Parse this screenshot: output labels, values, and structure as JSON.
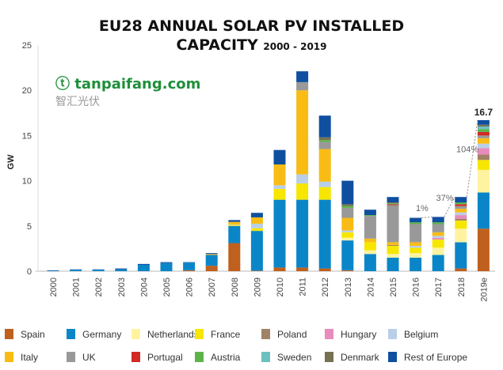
{
  "chart_data": {
    "type": "bar",
    "stacked": true,
    "title": "EU28 ANNUAL SOLAR PV INSTALLED",
    "title_line2": "CAPACITY",
    "title_years": "2000 - 2019",
    "ylabel": "GW",
    "xlabel": "",
    "ylim": [
      0,
      25
    ],
    "yticks": [
      "0",
      "5",
      "10",
      "15",
      "20",
      "25"
    ],
    "grid": false,
    "legend_position": "bottom",
    "categories": [
      "2000",
      "2001",
      "2002",
      "2003",
      "2004",
      "2005",
      "2006",
      "2007",
      "2008",
      "2009",
      "2010",
      "2011",
      "2012",
      "2013",
      "2014",
      "2015",
      "2016",
      "2017",
      "2018",
      "2019e"
    ],
    "series": [
      {
        "name": "Spain",
        "color": "#c0601e",
        "values": [
          0,
          0,
          0,
          0,
          0,
          0,
          0.1,
          0.6,
          3.1,
          0.05,
          0.4,
          0.4,
          0.3,
          0.1,
          0,
          0,
          0,
          0,
          0.3,
          4.7
        ]
      },
      {
        "name": "Germany",
        "color": "#0a86c8",
        "values": [
          0.05,
          0.15,
          0.15,
          0.2,
          0.7,
          0.9,
          0.85,
          1.2,
          1.9,
          4.4,
          7.5,
          7.5,
          7.6,
          3.3,
          1.9,
          1.5,
          1.5,
          1.8,
          2.9,
          4.0
        ]
      },
      {
        "name": "Netherlands",
        "color": "#fff3a0",
        "values": [
          0,
          0,
          0,
          0,
          0,
          0,
          0,
          0,
          0,
          0,
          0,
          0,
          0,
          0.3,
          0.4,
          0.4,
          0.5,
          0.8,
          1.5,
          2.5
        ]
      },
      {
        "name": "France",
        "color": "#f7e600",
        "values": [
          0,
          0,
          0,
          0,
          0,
          0,
          0,
          0,
          0.1,
          0.3,
          1.2,
          1.8,
          1.4,
          0.6,
          0.9,
          0.9,
          0.6,
          0.9,
          0.9,
          1.1
        ]
      },
      {
        "name": "Poland",
        "color": "#a08366",
        "values": [
          0,
          0,
          0,
          0,
          0,
          0,
          0,
          0,
          0,
          0,
          0,
          0,
          0,
          0,
          0,
          0.1,
          0,
          0,
          0.2,
          0.6
        ]
      },
      {
        "name": "Hungary",
        "color": "#e98bbd",
        "values": [
          0,
          0,
          0,
          0,
          0,
          0,
          0,
          0,
          0,
          0,
          0,
          0,
          0,
          0,
          0,
          0,
          0,
          0.2,
          0.4,
          0.7
        ]
      },
      {
        "name": "Belgium",
        "color": "#b9cfe8",
        "values": [
          0,
          0,
          0,
          0,
          0,
          0,
          0,
          0,
          0.05,
          0.5,
          0.4,
          1.0,
          0.6,
          0.2,
          0,
          0,
          0.2,
          0.2,
          0.3,
          0.5
        ]
      },
      {
        "name": "Italy",
        "color": "#f9bc15",
        "values": [
          0,
          0,
          0,
          0,
          0,
          0,
          0,
          0.1,
          0.3,
          0.7,
          2.3,
          9.3,
          3.6,
          1.4,
          0.4,
          0.3,
          0.4,
          0.4,
          0.4,
          0.6
        ]
      },
      {
        "name": "UK",
        "color": "#999999",
        "values": [
          0,
          0,
          0,
          0,
          0,
          0,
          0,
          0,
          0,
          0,
          0,
          0.9,
          0.8,
          1.1,
          2.5,
          4.1,
          2.0,
          0.9,
          0.3,
          0.3
        ]
      },
      {
        "name": "Portugal",
        "color": "#d22a26",
        "values": [
          0,
          0,
          0,
          0,
          0,
          0,
          0,
          0,
          0,
          0,
          0,
          0,
          0,
          0,
          0,
          0.1,
          0,
          0,
          0.2,
          0.4
        ]
      },
      {
        "name": "Austria",
        "color": "#5db34a",
        "values": [
          0,
          0,
          0,
          0,
          0,
          0,
          0,
          0,
          0,
          0,
          0,
          0,
          0.2,
          0.2,
          0.1,
          0.1,
          0.2,
          0.2,
          0.2,
          0.3
        ]
      },
      {
        "name": "Sweden",
        "color": "#6cc0c0",
        "values": [
          0,
          0,
          0,
          0,
          0,
          0,
          0,
          0,
          0,
          0,
          0,
          0,
          0,
          0,
          0,
          0,
          0,
          0,
          0,
          0.3
        ]
      },
      {
        "name": "Denmark",
        "color": "#767150",
        "values": [
          0,
          0,
          0,
          0,
          0,
          0,
          0,
          0,
          0,
          0,
          0,
          0,
          0.3,
          0.2,
          0,
          0.1,
          0,
          0,
          0,
          0.2
        ]
      },
      {
        "name": "Rest of Europe",
        "color": "#0f4fa0",
        "values": [
          0.05,
          0.05,
          0.05,
          0.1,
          0.1,
          0.1,
          0.05,
          0.1,
          0.2,
          0.5,
          1.6,
          1.2,
          2.4,
          2.6,
          0.6,
          0.6,
          0.5,
          0.6,
          0.6,
          0.5
        ]
      }
    ],
    "annotations": [
      {
        "text": "1%",
        "from": "2016",
        "to": "2017"
      },
      {
        "text": "37%",
        "from": "2017",
        "to": "2018"
      },
      {
        "text": "104%",
        "from": "2018",
        "to": "2019e"
      },
      {
        "text": "16.7",
        "at": "2019e"
      }
    ]
  },
  "watermark": {
    "site": "tanpaifang.com",
    "chinese": "智汇光伏"
  }
}
